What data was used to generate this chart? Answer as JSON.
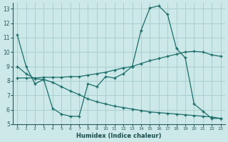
{
  "xlabel": "Humidex (Indice chaleur)",
  "background_color": "#cce8e8",
  "line_color": "#1a6e6a",
  "grid_color": "#aacfcf",
  "xlim": [
    -0.5,
    23.5
  ],
  "ylim": [
    5,
    13.4
  ],
  "xticks": [
    0,
    1,
    2,
    3,
    4,
    5,
    6,
    7,
    8,
    9,
    10,
    11,
    12,
    13,
    14,
    15,
    16,
    17,
    18,
    19,
    20,
    21,
    22,
    23
  ],
  "yticks": [
    5,
    6,
    7,
    8,
    9,
    10,
    11,
    12,
    13
  ],
  "line1_y": [
    11.2,
    9.0,
    7.8,
    8.1,
    6.1,
    5.7,
    5.55,
    5.55,
    7.8,
    7.6,
    8.3,
    8.2,
    8.5,
    9.0,
    11.5,
    13.05,
    13.2,
    12.6,
    10.25,
    9.6,
    6.4,
    5.9,
    5.4,
    5.4
  ],
  "line2_y": [
    8.2,
    8.2,
    8.2,
    8.25,
    8.25,
    8.25,
    8.3,
    8.3,
    8.4,
    8.5,
    8.6,
    8.75,
    8.9,
    9.0,
    9.2,
    9.4,
    9.55,
    9.7,
    9.85,
    10.0,
    10.05,
    10.0,
    9.8,
    9.7
  ],
  "line3_y": [
    9.0,
    8.5,
    8.15,
    8.1,
    7.9,
    7.6,
    7.3,
    7.05,
    6.75,
    6.55,
    6.4,
    6.25,
    6.15,
    6.05,
    5.95,
    5.85,
    5.8,
    5.75,
    5.7,
    5.65,
    5.6,
    5.55,
    5.5,
    5.4
  ]
}
